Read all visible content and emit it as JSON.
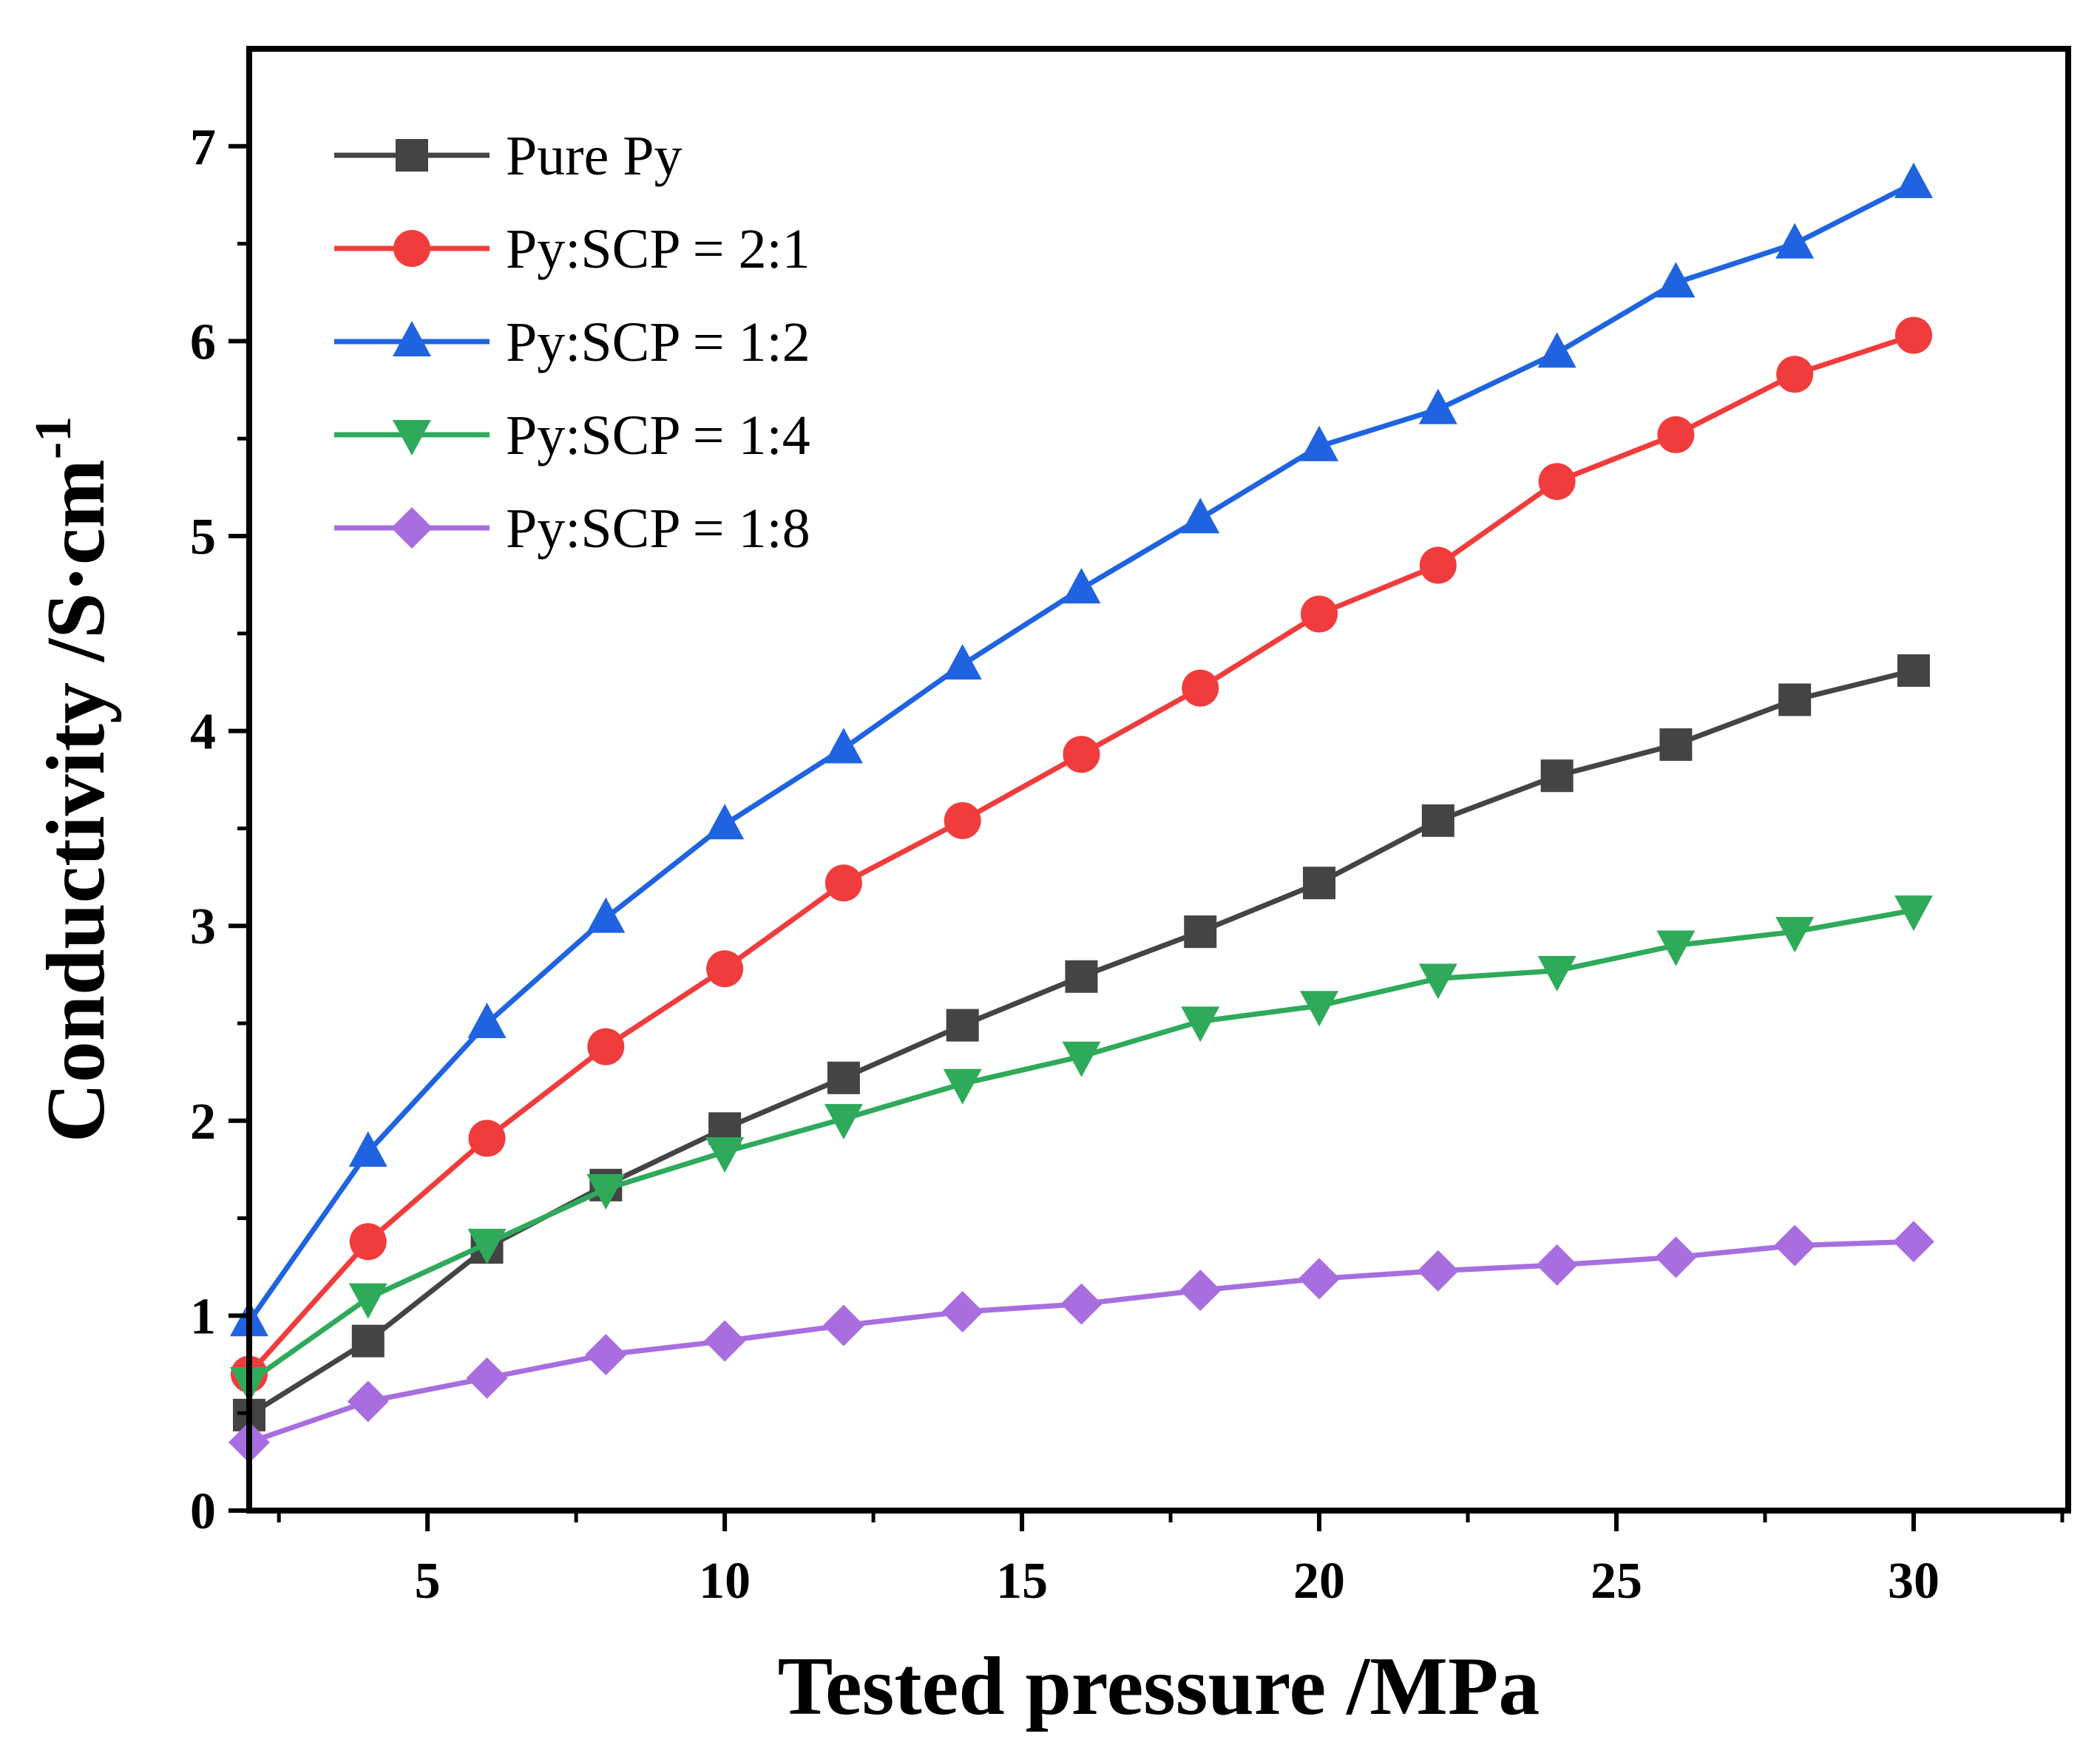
{
  "chart_data": {
    "type": "line",
    "title": "",
    "xlabel": "Tested pressure /MPa",
    "ylabel": "Conductivity /S·cm",
    "ylabel_superscript": "-1",
    "xlim": [
      2,
      32.6
    ],
    "ylim": [
      0,
      7.5
    ],
    "xticks": [
      5,
      10,
      15,
      20,
      25,
      30
    ],
    "yticks": [
      0,
      1,
      2,
      3,
      4,
      5,
      6,
      7
    ],
    "grid": false,
    "legend_position": "top-left",
    "x": [
      2,
      4,
      6,
      8,
      10,
      12,
      14,
      16,
      18,
      20,
      22,
      24,
      26,
      28,
      30
    ],
    "series": [
      {
        "name": "Pure Py",
        "color": "#444444",
        "marker": "square",
        "values": [
          0.49,
          0.87,
          1.35,
          1.67,
          1.96,
          2.22,
          2.49,
          2.74,
          2.97,
          3.22,
          3.54,
          3.77,
          3.93,
          4.16,
          4.31
        ]
      },
      {
        "name": "Py:SCP = 2:1",
        "color": "#f03c3c",
        "marker": "circle",
        "values": [
          0.7,
          1.38,
          1.91,
          2.38,
          2.78,
          3.22,
          3.54,
          3.88,
          4.22,
          4.6,
          4.85,
          5.28,
          5.52,
          5.83,
          6.03
        ]
      },
      {
        "name": "Py:SCP = 1:2",
        "color": "#1f63e0",
        "marker": "triangle-up",
        "values": [
          0.97,
          1.84,
          2.5,
          3.04,
          3.52,
          3.91,
          4.34,
          4.73,
          5.09,
          5.46,
          5.65,
          5.94,
          6.3,
          6.5,
          6.81
        ]
      },
      {
        "name": "Py:SCP = 1:4",
        "color": "#2eaa5a",
        "marker": "triangle-down",
        "values": [
          0.66,
          1.09,
          1.37,
          1.65,
          1.84,
          2.01,
          2.19,
          2.33,
          2.51,
          2.59,
          2.73,
          2.77,
          2.9,
          2.97,
          3.08
        ]
      },
      {
        "name": "Py:SCP = 1:8",
        "color": "#a86ee0",
        "marker": "diamond",
        "values": [
          0.35,
          0.56,
          0.68,
          0.8,
          0.87,
          0.95,
          1.02,
          1.06,
          1.13,
          1.19,
          1.23,
          1.26,
          1.3,
          1.36,
          1.38
        ]
      }
    ]
  }
}
